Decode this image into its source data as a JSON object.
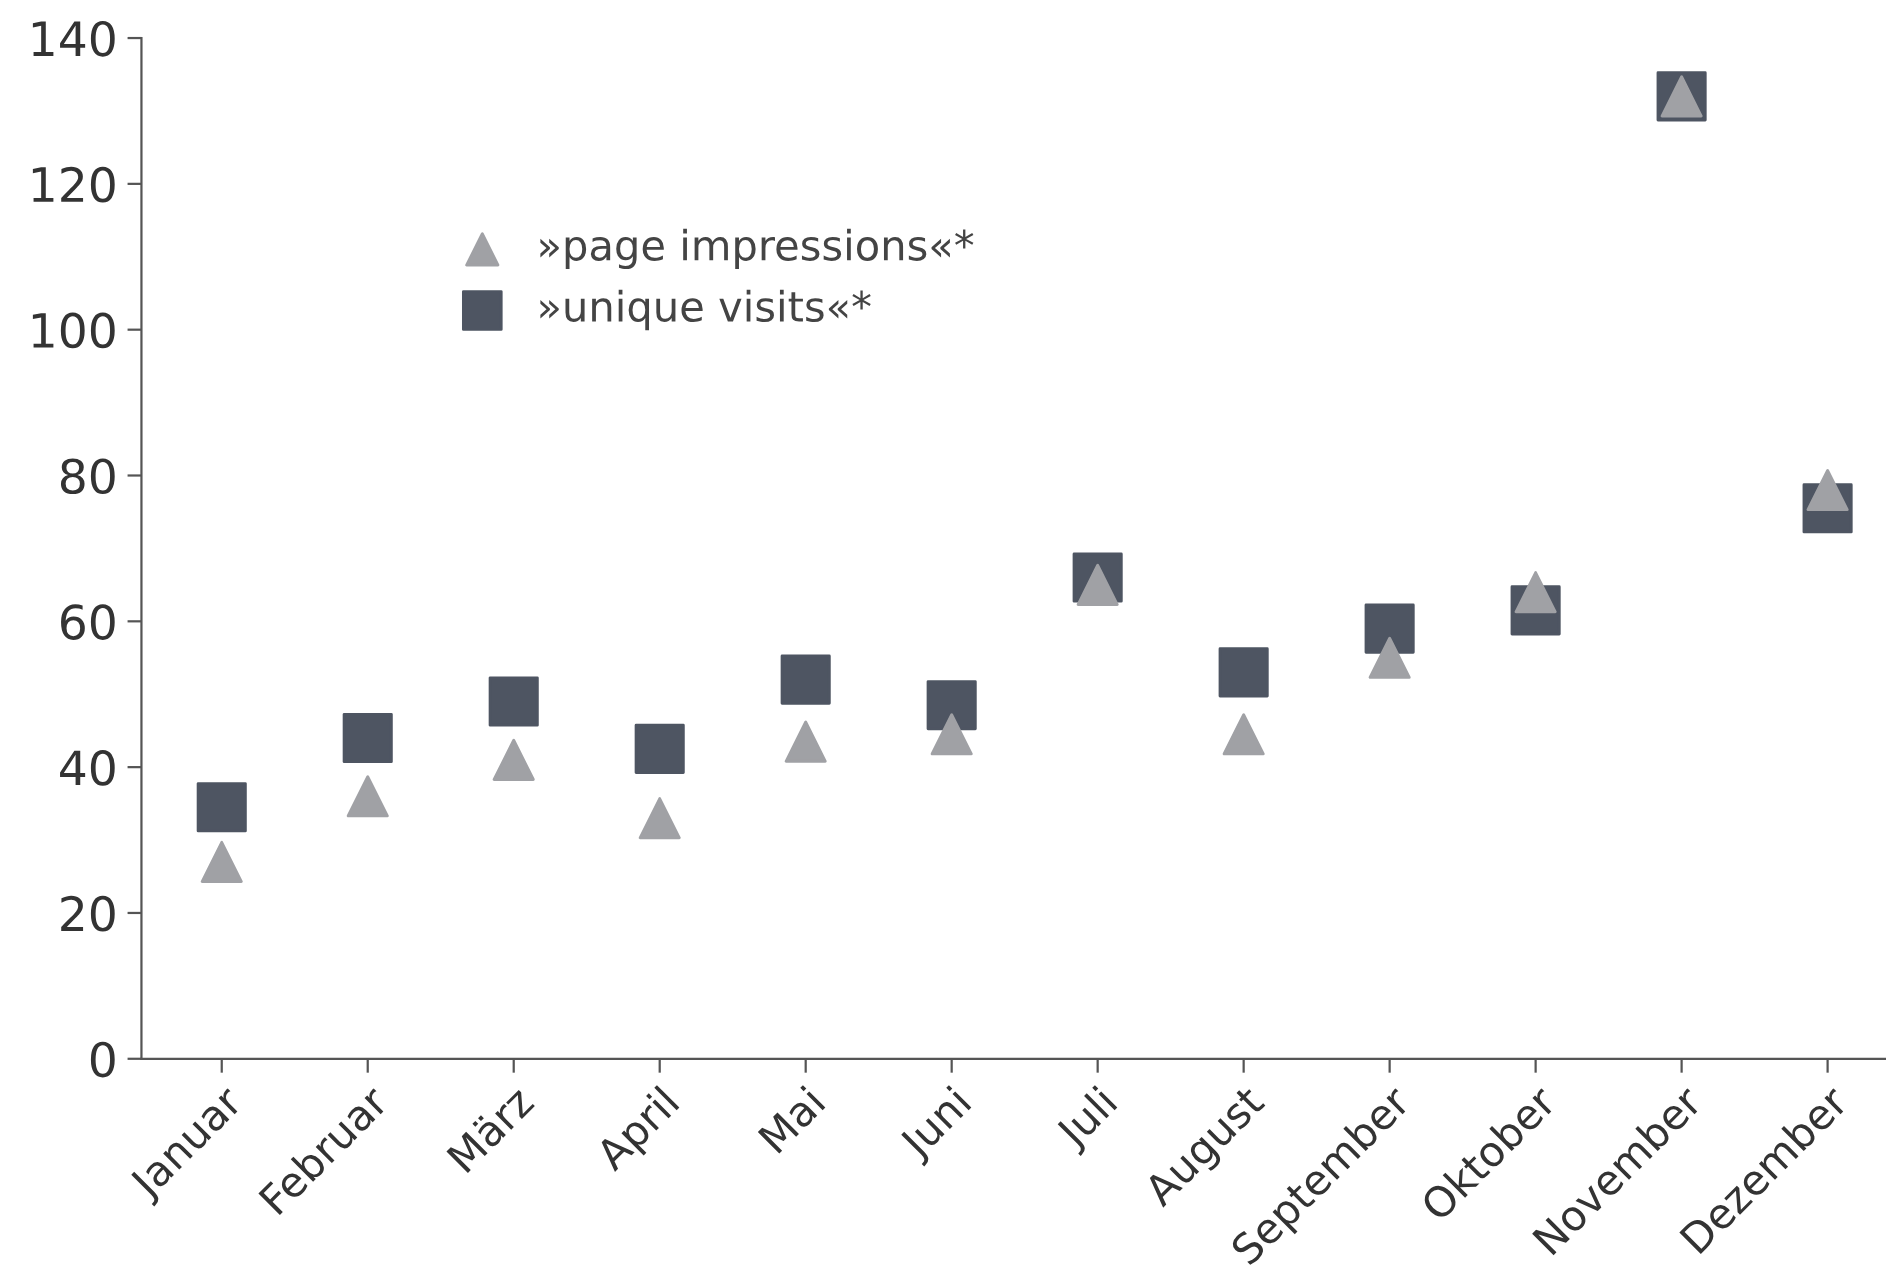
{
  "chart_data": {
    "type": "scatter",
    "categories": [
      "Januar",
      "Februar",
      "März",
      "April",
      "Mai",
      "Juni",
      "Juli",
      "August",
      "September",
      "Oktober",
      "November",
      "Dezember"
    ],
    "series": [
      {
        "name": "»page impressions«*",
        "color": "#a0a1a5",
        "marker": "triangle",
        "values": [
          27,
          36,
          41,
          33,
          43.5,
          44.5,
          65,
          44.5,
          55,
          64,
          132,
          78
        ]
      },
      {
        "name": "»unique visits«*",
        "color": "#4e5562",
        "marker": "square",
        "values": [
          34.5,
          44,
          49,
          42.5,
          52,
          48.5,
          66,
          53,
          59,
          61.5,
          132,
          75.5
        ]
      }
    ],
    "ylim": [
      0,
      140
    ],
    "yticks": [
      0,
      20,
      40,
      60,
      80,
      100,
      120,
      140
    ],
    "grid": false,
    "legend": "top left"
  }
}
